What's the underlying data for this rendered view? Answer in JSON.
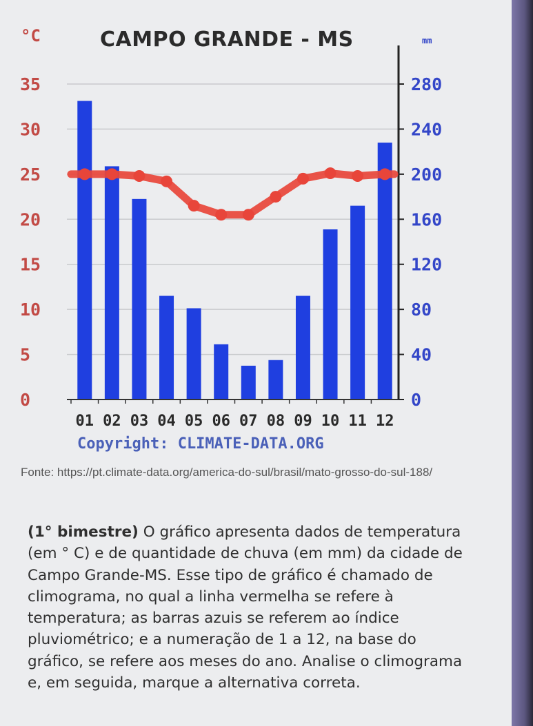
{
  "chart_data": {
    "type": "bar",
    "title": "CAMPO GRANDE - MS",
    "left_unit": "°C",
    "right_unit": "mm",
    "categories": [
      "01",
      "02",
      "03",
      "04",
      "05",
      "06",
      "07",
      "08",
      "09",
      "10",
      "11",
      "12"
    ],
    "series": [
      {
        "values": [
          265,
          207,
          178,
          92,
          81,
          49,
          30,
          35,
          92,
          151,
          172,
          228
        ]
      },
      {
        "values": [
          25,
          25,
          24.8,
          24.2,
          21.5,
          20.5,
          20.5,
          22.5,
          24.5,
          25.1,
          24.8,
          25
        ]
      }
    ],
    "left_axis": {
      "ticks": [
        0,
        5,
        10,
        15,
        20,
        25,
        30,
        35
      ],
      "ylim": [
        0,
        35
      ]
    },
    "right_axis": {
      "ticks": [
        0,
        40,
        80,
        120,
        160,
        200,
        240,
        280
      ],
      "ylim": [
        0,
        280
      ]
    },
    "grid": true,
    "colors": {
      "bars": "#1f3fe0",
      "line": "#e8453a",
      "left_ticks": "#c24a45",
      "right_ticks": "#3346c8"
    },
    "copyright": "Copyright: CLIMATE-DATA.ORG"
  },
  "source_text": "Fonte: https://pt.climate-data.org/america-do-sul/brasil/mato-grosso-do-sul-188/",
  "question": {
    "lead": "(1° bimestre)",
    "body": " O gráfico apresenta dados de temperatura (em ° C) e de quantidade de chuva (em mm) da cidade de Campo Grande-MS. Esse tipo de gráfico é chamado de climograma, no qual a linha vermelha se refere à temperatura; as barras azuis se referem ao índice pluviométrico; e a numeração de 1 a 12, na base do gráfico, se refere aos meses do ano. Analise o climograma e, em seguida, marque a alternativa correta."
  }
}
